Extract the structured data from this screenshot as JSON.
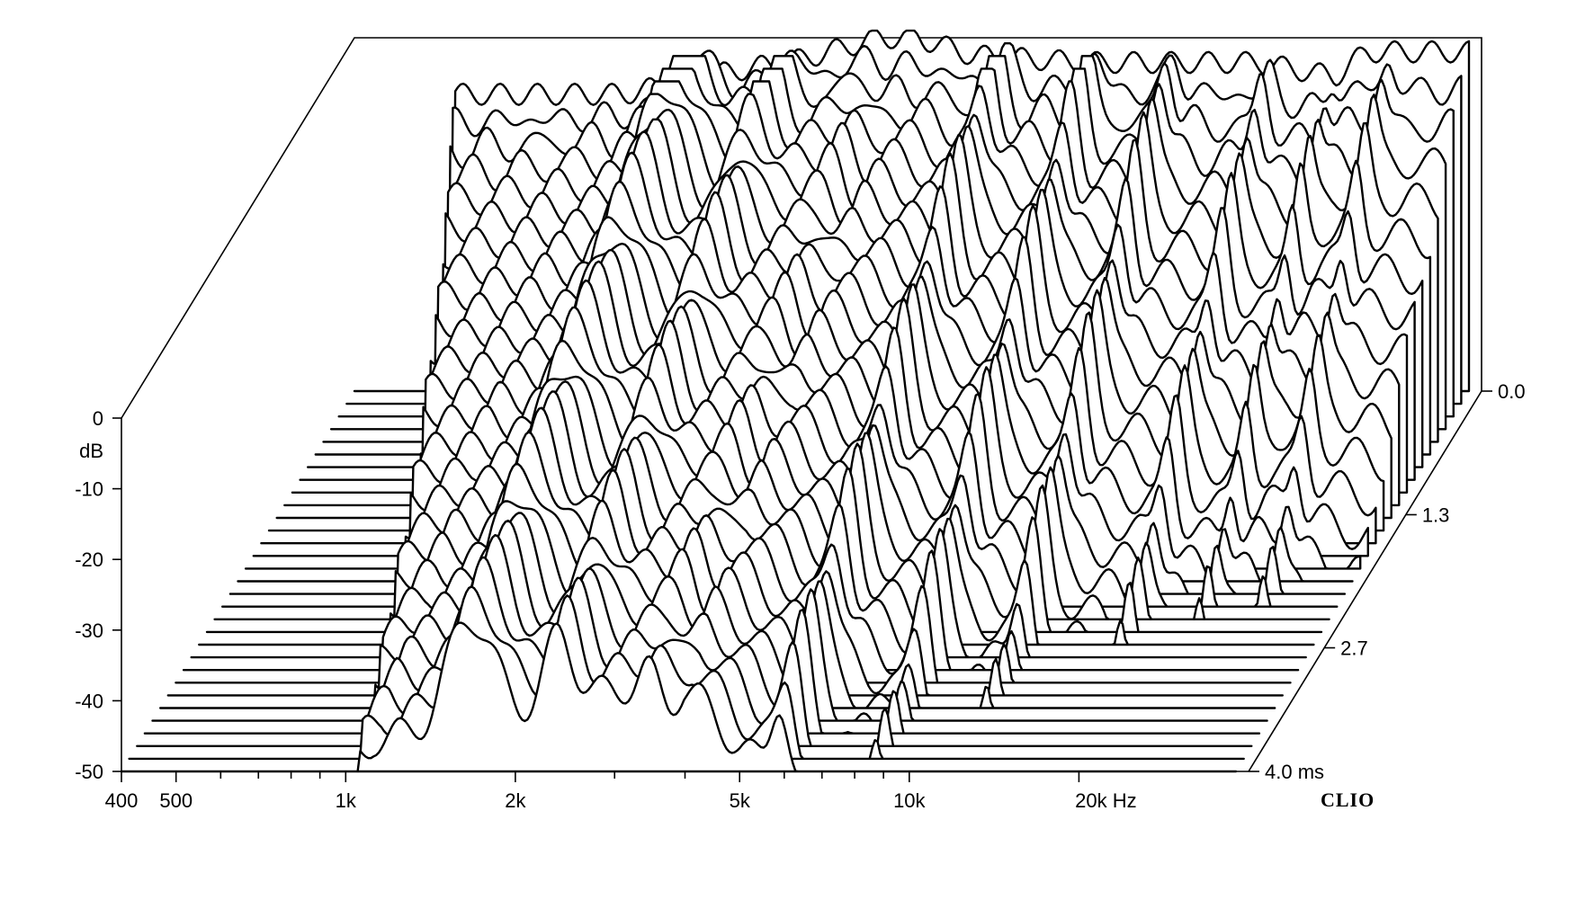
{
  "chart_data": {
    "type": "waterfall",
    "x_axis": {
      "scale": "log",
      "unit": "Hz",
      "range": [
        400,
        40000
      ],
      "labeled_ticks": [
        {
          "value": 400,
          "label": "400"
        },
        {
          "value": 500,
          "label": "500"
        },
        {
          "value": 1000,
          "label": "1k"
        },
        {
          "value": 2000,
          "label": "2k"
        },
        {
          "value": 5000,
          "label": "5k"
        },
        {
          "value": 10000,
          "label": "10k"
        },
        {
          "value": 20000,
          "label": "20k Hz"
        }
      ],
      "minor_ticks": [
        600,
        700,
        800,
        900,
        3000,
        4000,
        6000,
        7000,
        8000,
        9000
      ]
    },
    "y_axis": {
      "unit": "dB",
      "unit_label": "dB",
      "range": [
        -50,
        0
      ],
      "labeled_ticks": [
        {
          "value": 0,
          "label": "0"
        },
        {
          "value": -10,
          "label": "-10"
        },
        {
          "value": -20,
          "label": "-20"
        },
        {
          "value": -30,
          "label": "-30"
        },
        {
          "value": -40,
          "label": "-40"
        },
        {
          "value": -50,
          "label": "-50"
        }
      ]
    },
    "time_axis": {
      "unit": "ms",
      "range": [
        0,
        4.0
      ],
      "labeled_ticks": [
        {
          "value": 0.0,
          "label": "0.0"
        },
        {
          "value": 1.3,
          "label": "1.3"
        },
        {
          "value": 2.7,
          "label": "2.7"
        },
        {
          "value": 4.0,
          "label": "4.0  ms"
        }
      ]
    },
    "slice_count": 31,
    "floor_db": -50,
    "initial_response_db": [
      {
        "freq": 1200,
        "db": -8
      },
      {
        "freq": 1800,
        "db": -5
      },
      {
        "freq": 2500,
        "db": -3
      },
      {
        "freq": 3400,
        "db": 0
      },
      {
        "freq": 4000,
        "db": 0
      },
      {
        "freq": 5000,
        "db": -2.5
      },
      {
        "freq": 8000,
        "db": -3.5
      },
      {
        "freq": 16000,
        "db": -3.5
      },
      {
        "freq": 22000,
        "db": -5.5
      },
      {
        "freq": 25000,
        "db": -2
      },
      {
        "freq": 35000,
        "db": -2
      }
    ],
    "brand": "CLIO"
  }
}
